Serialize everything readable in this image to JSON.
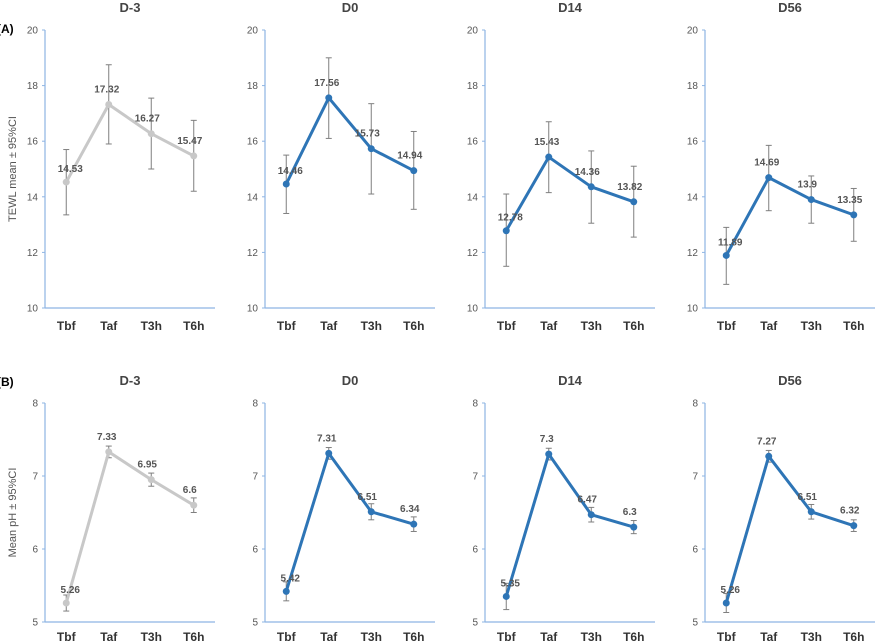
{
  "figure": {
    "panel_labels": [
      "(A)",
      "(B)"
    ]
  },
  "colors": {
    "baseline": "#c8c8c8",
    "treatment": "#2e75b6",
    "axis": "#8eb4e3",
    "errorbar": "#7f7f7f"
  },
  "chart_data": [
    {
      "type": "line",
      "row": "A",
      "title": "D-3",
      "categories": [
        "Tbf",
        "Taf",
        "T3h",
        "T6h"
      ],
      "ylabel": "TEWL mean ± 95%CI",
      "ylim": [
        10,
        20
      ],
      "yticks": [
        10,
        12,
        14,
        16,
        18,
        20
      ],
      "series": [
        {
          "values": [
            14.53,
            17.32,
            16.27,
            15.47
          ],
          "labels": [
            "14.53",
            "17.32",
            "16.27",
            "15.47"
          ],
          "err_low": [
            13.35,
            15.9,
            15.0,
            14.2
          ],
          "err_high": [
            15.7,
            18.75,
            17.55,
            16.75
          ]
        }
      ],
      "color": "#c8c8c8"
    },
    {
      "type": "line",
      "row": "A",
      "title": "D0",
      "categories": [
        "Tbf",
        "Taf",
        "T3h",
        "T6h"
      ],
      "ylabel": "",
      "ylim": [
        10,
        20
      ],
      "yticks": [
        10,
        12,
        14,
        16,
        18,
        20
      ],
      "series": [
        {
          "values": [
            14.46,
            17.56,
            15.73,
            14.94
          ],
          "labels": [
            "14.46",
            "17.56",
            "15.73",
            "14.94"
          ],
          "err_low": [
            13.4,
            16.1,
            14.1,
            13.55
          ],
          "err_high": [
            15.5,
            19.0,
            17.35,
            16.35
          ]
        }
      ],
      "color": "#2e75b6"
    },
    {
      "type": "line",
      "row": "A",
      "title": "D14",
      "categories": [
        "Tbf",
        "Taf",
        "T3h",
        "T6h"
      ],
      "ylabel": "",
      "ylim": [
        10,
        20
      ],
      "yticks": [
        10,
        12,
        14,
        16,
        18,
        20
      ],
      "series": [
        {
          "values": [
            12.78,
            15.43,
            14.36,
            13.82
          ],
          "labels": [
            "12.78",
            "15.43",
            "14.36",
            "13.82"
          ],
          "err_low": [
            11.5,
            14.15,
            13.05,
            12.55
          ],
          "err_high": [
            14.1,
            16.7,
            15.65,
            15.1
          ]
        }
      ],
      "color": "#2e75b6"
    },
    {
      "type": "line",
      "row": "A",
      "title": "D56",
      "categories": [
        "Tbf",
        "Taf",
        "T3h",
        "T6h"
      ],
      "ylabel": "",
      "ylim": [
        10,
        20
      ],
      "yticks": [
        10,
        12,
        14,
        16,
        18,
        20
      ],
      "series": [
        {
          "values": [
            11.89,
            14.69,
            13.9,
            13.35
          ],
          "labels": [
            "11.89",
            "14.69",
            "13.9",
            "13.35"
          ],
          "err_low": [
            10.85,
            13.5,
            13.05,
            12.4
          ],
          "err_high": [
            12.9,
            15.85,
            14.75,
            14.3
          ]
        }
      ],
      "color": "#2e75b6"
    },
    {
      "type": "line",
      "row": "B",
      "title": "D-3",
      "categories": [
        "Tbf",
        "Taf",
        "T3h",
        "T6h"
      ],
      "ylabel": "Mean pH ± 95%CI",
      "ylim": [
        5,
        8
      ],
      "yticks": [
        5,
        6,
        7,
        8
      ],
      "series": [
        {
          "values": [
            5.26,
            7.33,
            6.95,
            6.6
          ],
          "labels": [
            "5.26",
            "7.33",
            "6.95",
            "6.6"
          ],
          "err_low": [
            5.15,
            7.25,
            6.86,
            6.5
          ],
          "err_high": [
            5.37,
            7.41,
            7.04,
            6.7
          ]
        }
      ],
      "color": "#c8c8c8"
    },
    {
      "type": "line",
      "row": "B",
      "title": "D0",
      "categories": [
        "Tbf",
        "Taf",
        "T3h",
        "T6h"
      ],
      "ylabel": "",
      "ylim": [
        5,
        8
      ],
      "yticks": [
        5,
        6,
        7,
        8
      ],
      "series": [
        {
          "values": [
            5.42,
            7.31,
            6.51,
            6.34
          ],
          "labels": [
            "5.42",
            "7.31",
            "6.51",
            "6.34"
          ],
          "err_low": [
            5.29,
            7.23,
            6.4,
            6.24
          ],
          "err_high": [
            5.55,
            7.39,
            6.62,
            6.44
          ]
        }
      ],
      "color": "#2e75b6"
    },
    {
      "type": "line",
      "row": "B",
      "title": "D14",
      "categories": [
        "Tbf",
        "Taf",
        "T3h",
        "T6h"
      ],
      "ylabel": "",
      "ylim": [
        5,
        8
      ],
      "yticks": [
        5,
        6,
        7,
        8
      ],
      "series": [
        {
          "values": [
            5.35,
            7.3,
            6.47,
            6.3
          ],
          "labels": [
            "5.35",
            "7.3",
            "6.47",
            "6.3"
          ],
          "err_low": [
            5.17,
            7.22,
            6.37,
            6.21
          ],
          "err_high": [
            5.53,
            7.38,
            6.57,
            6.39
          ]
        }
      ],
      "color": "#2e75b6"
    },
    {
      "type": "line",
      "row": "B",
      "title": "D56",
      "categories": [
        "Tbf",
        "Taf",
        "T3h",
        "T6h"
      ],
      "ylabel": "",
      "ylim": [
        5,
        8
      ],
      "yticks": [
        5,
        6,
        7,
        8
      ],
      "series": [
        {
          "values": [
            5.26,
            7.27,
            6.51,
            6.32
          ],
          "labels": [
            "5.26",
            "7.27",
            "6.51",
            "6.32"
          ],
          "err_low": [
            5.13,
            7.19,
            6.41,
            6.24
          ],
          "err_high": [
            5.39,
            7.35,
            6.61,
            6.4
          ]
        }
      ],
      "color": "#2e75b6"
    }
  ]
}
